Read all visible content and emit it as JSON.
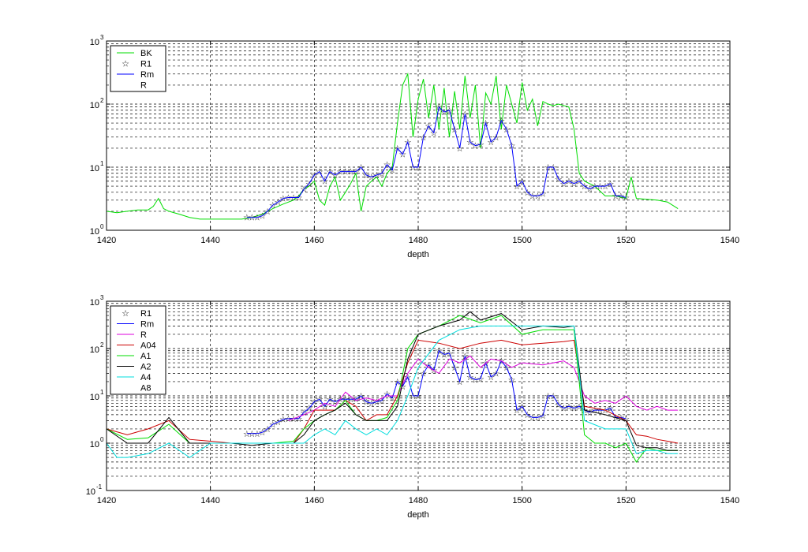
{
  "chart_data": [
    {
      "type": "line",
      "xlabel": "depth",
      "xlim": [
        1420,
        1540
      ],
      "ylim": [
        1,
        1000
      ],
      "yscale": "log",
      "grid": true,
      "legend_position": "top-left",
      "xticks": [
        "1420",
        "1440",
        "1460",
        "1480",
        "1500",
        "1520",
        "1540"
      ],
      "yticks": [
        {
          "base": "10",
          "exp": "0"
        },
        {
          "base": "10",
          "exp": "1"
        },
        {
          "base": "10",
          "exp": "2"
        },
        {
          "base": "10",
          "exp": "3"
        }
      ],
      "series": [
        {
          "name": "BK",
          "color": "#00dd00",
          "marker": "none",
          "x": [
            1420,
            1422,
            1424,
            1426,
            1428,
            1429,
            1430,
            1431,
            1432,
            1434,
            1436,
            1438,
            1440,
            1442,
            1444,
            1446,
            1448,
            1450,
            1452,
            1454,
            1456,
            1457,
            1458,
            1459,
            1460,
            1461,
            1462,
            1463,
            1464,
            1465,
            1466,
            1467,
            1468,
            1469,
            1470,
            1471,
            1472,
            1473,
            1474,
            1475,
            1476,
            1477,
            1478,
            1479,
            1480,
            1481,
            1482,
            1483,
            1484,
            1485,
            1486,
            1487,
            1488,
            1489,
            1490,
            1491,
            1492,
            1493,
            1494,
            1495,
            1496,
            1497,
            1498,
            1499,
            1500,
            1501,
            1502,
            1503,
            1504,
            1505,
            1506,
            1507,
            1508,
            1509,
            1510,
            1511,
            1512,
            1514,
            1516,
            1518,
            1520,
            1521,
            1522,
            1524,
            1526,
            1528,
            1530
          ],
          "y": [
            2.0,
            1.9,
            2.0,
            2.1,
            2.1,
            2.4,
            3.2,
            2.2,
            2.0,
            1.8,
            1.6,
            1.5,
            1.5,
            1.5,
            1.5,
            1.5,
            1.6,
            1.8,
            2.2,
            2.6,
            3.0,
            3.5,
            4.5,
            5.0,
            6.0,
            3.0,
            2.5,
            5.0,
            7.0,
            3.0,
            4.0,
            5.5,
            8.0,
            2.0,
            5.0,
            6.0,
            7.0,
            5.0,
            8.0,
            10.0,
            50.0,
            200.0,
            300.0,
            30.0,
            120.0,
            250.0,
            60.0,
            200.0,
            40.0,
            180.0,
            30.0,
            160.0,
            40.0,
            280.0,
            60.0,
            200.0,
            20.0,
            150.0,
            100.0,
            280.0,
            40.0,
            200.0,
            100.0,
            50.0,
            220.0,
            80.0,
            120.0,
            45.0,
            110.0,
            100.0,
            95.0,
            100.0,
            95.0,
            90.0,
            40.0,
            8.0,
            6.0,
            5.0,
            3.5,
            3.5,
            3.2,
            7.0,
            3.2,
            3.1,
            3.0,
            2.8,
            2.2
          ]
        },
        {
          "name": "R1",
          "color": "#0000ff",
          "marker": "star",
          "x": [
            1447,
            1448,
            1449,
            1450,
            1451,
            1452,
            1453,
            1454,
            1455,
            1456,
            1457,
            1458,
            1459,
            1460,
            1461,
            1462,
            1463,
            1464,
            1465,
            1466,
            1467,
            1468,
            1469,
            1470,
            1471,
            1472,
            1473,
            1474,
            1475,
            1476,
            1477,
            1478,
            1479,
            1480,
            1481,
            1482,
            1483,
            1484,
            1485,
            1486,
            1487,
            1488,
            1489,
            1490,
            1491,
            1492,
            1493,
            1494,
            1495,
            1496,
            1497,
            1498,
            1499,
            1500,
            1501,
            1502,
            1503,
            1504,
            1505,
            1506,
            1507,
            1508,
            1509,
            1510,
            1511,
            1512,
            1513,
            1514,
            1515,
            1516,
            1517,
            1518,
            1519,
            1520
          ],
          "y": [
            1.6,
            1.6,
            1.6,
            1.7,
            2.0,
            2.5,
            2.8,
            3.2,
            3.3,
            3.3,
            3.3,
            4.5,
            5.5,
            7.5,
            8.5,
            6.0,
            8.5,
            7.5,
            8.5,
            8.5,
            8.5,
            8.5,
            10.0,
            7.5,
            7.0,
            7.5,
            8.0,
            11.0,
            9.0,
            20.0,
            16.0,
            25.0,
            10.0,
            10.0,
            30.0,
            45.0,
            35.0,
            90.0,
            75.0,
            80.0,
            40.0,
            20.0,
            70.0,
            25.0,
            22.0,
            23.0,
            50.0,
            25.0,
            30.0,
            55.0,
            40.0,
            22.0,
            5.0,
            6.0,
            4.0,
            3.5,
            3.5,
            3.8,
            10.0,
            10.0,
            6.5,
            5.5,
            6.0,
            5.5,
            6.0,
            5.0,
            4.5,
            5.0,
            5.0,
            5.0,
            5.5,
            3.5,
            3.5,
            3.3
          ]
        },
        {
          "name": "Rm",
          "color": "#0000ff",
          "marker": "none",
          "same_as": "R1"
        },
        {
          "name": "R",
          "color": "#ffffff",
          "marker": "none",
          "hidden": true
        }
      ]
    },
    {
      "type": "line",
      "xlabel": "depth",
      "xlim": [
        1420,
        1540
      ],
      "ylim": [
        0.1,
        1000
      ],
      "yscale": "log",
      "grid": true,
      "legend_position": "top-left",
      "xticks": [
        "1420",
        "1440",
        "1460",
        "1480",
        "1500",
        "1520",
        "1540"
      ],
      "yticks": [
        {
          "base": "10",
          "exp": "-1"
        },
        {
          "base": "10",
          "exp": "0"
        },
        {
          "base": "10",
          "exp": "1"
        },
        {
          "base": "10",
          "exp": "2"
        },
        {
          "base": "10",
          "exp": "3"
        }
      ],
      "series": [
        {
          "name": "R1",
          "color": "#0000ff",
          "marker": "star",
          "same_as": "top.R1"
        },
        {
          "name": "Rm",
          "color": "#0000ff",
          "marker": "none",
          "same_as": "top.R1"
        },
        {
          "name": "R",
          "color": "#dd00dd",
          "marker": "none",
          "x": [
            1455,
            1458,
            1460,
            1462,
            1464,
            1466,
            1468,
            1470,
            1472,
            1474,
            1476,
            1478,
            1480,
            1482,
            1484,
            1486,
            1488,
            1490,
            1492,
            1494,
            1496,
            1498,
            1500,
            1504,
            1508,
            1510,
            1512,
            1514,
            1516,
            1518,
            1520,
            1522,
            1524,
            1526,
            1528,
            1530
          ],
          "y": [
            3.0,
            4.0,
            5.0,
            7.0,
            6.0,
            12.0,
            8.0,
            9.0,
            8.0,
            10.0,
            10.0,
            30.0,
            60.0,
            40.0,
            30.0,
            60.0,
            50.0,
            70.0,
            40.0,
            60.0,
            55.0,
            40.0,
            50.0,
            45.0,
            55.0,
            40.0,
            10.0,
            7.0,
            8.0,
            7.0,
            10.0,
            6.0,
            5.0,
            6.0,
            5.0,
            5.0
          ]
        },
        {
          "name": "A04",
          "color": "#cc0000",
          "marker": "none",
          "x": [
            1420,
            1424,
            1428,
            1432,
            1436,
            1440,
            1444,
            1448,
            1452,
            1456,
            1458,
            1460,
            1462,
            1464,
            1466,
            1468,
            1470,
            1472,
            1474,
            1476,
            1478,
            1480,
            1484,
            1488,
            1492,
            1496,
            1500,
            1504,
            1508,
            1510,
            1512,
            1516,
            1520,
            1522,
            1524,
            1526,
            1528,
            1530
          ],
          "y": [
            2.0,
            1.5,
            2.0,
            3.0,
            1.2,
            1.1,
            1.0,
            1.0,
            1.0,
            1.0,
            2.0,
            5.0,
            5.0,
            5.0,
            8.0,
            6.0,
            3.0,
            4.0,
            4.0,
            10.0,
            50.0,
            150.0,
            130.0,
            100.0,
            130.0,
            150.0,
            120.0,
            130.0,
            140.0,
            150.0,
            6.0,
            5.0,
            3.0,
            1.5,
            1.4,
            1.2,
            1.1,
            1.0
          ]
        },
        {
          "name": "A1",
          "color": "#00dd00",
          "marker": "none",
          "x": [
            1420,
            1424,
            1428,
            1432,
            1436,
            1440,
            1444,
            1448,
            1452,
            1456,
            1458,
            1460,
            1462,
            1464,
            1466,
            1468,
            1470,
            1472,
            1474,
            1476,
            1478,
            1480,
            1484,
            1488,
            1492,
            1496,
            1500,
            1504,
            1508,
            1510,
            1512,
            1514,
            1516,
            1518,
            1520,
            1522,
            1524,
            1526,
            1528,
            1530
          ],
          "y": [
            2.0,
            1.2,
            1.3,
            2.5,
            1.0,
            1.0,
            1.0,
            1.0,
            1.0,
            1.1,
            2.0,
            3.0,
            4.0,
            5.0,
            8.0,
            4.0,
            3.0,
            3.0,
            3.5,
            8.0,
            100.0,
            200.0,
            300.0,
            500.0,
            350.0,
            500.0,
            200.0,
            250.0,
            250.0,
            250.0,
            1.5,
            1.0,
            1.0,
            0.8,
            1.0,
            0.4,
            0.8,
            0.7,
            0.7,
            0.7
          ]
        },
        {
          "name": "A2",
          "color": "#000000",
          "marker": "none",
          "x": [
            1420,
            1424,
            1428,
            1432,
            1436,
            1440,
            1444,
            1448,
            1452,
            1456,
            1458,
            1460,
            1462,
            1464,
            1466,
            1468,
            1470,
            1472,
            1474,
            1476,
            1478,
            1480,
            1484,
            1488,
            1490,
            1492,
            1496,
            1500,
            1504,
            1508,
            1510,
            1512,
            1516,
            1520,
            1522,
            1524,
            1526,
            1528,
            1530
          ],
          "y": [
            2.0,
            1.0,
            1.0,
            3.5,
            1.0,
            1.0,
            1.0,
            0.9,
            1.0,
            1.0,
            1.5,
            3.0,
            4.0,
            5.0,
            7.0,
            4.0,
            3.0,
            3.0,
            3.0,
            6.0,
            60.0,
            200.0,
            300.0,
            400.0,
            600.0,
            400.0,
            550.0,
            250.0,
            300.0,
            280.0,
            300.0,
            5.0,
            4.0,
            3.0,
            0.9,
            0.8,
            0.8,
            0.7,
            0.7
          ]
        },
        {
          "name": "A4",
          "color": "#00dddd",
          "marker": "none",
          "x": [
            1420,
            1422,
            1424,
            1428,
            1432,
            1436,
            1440,
            1444,
            1448,
            1452,
            1456,
            1458,
            1460,
            1462,
            1464,
            1466,
            1468,
            1470,
            1472,
            1474,
            1476,
            1478,
            1480,
            1484,
            1488,
            1492,
            1496,
            1500,
            1504,
            1508,
            1510,
            1512,
            1516,
            1520,
            1522,
            1524,
            1526,
            1528,
            1530
          ],
          "y": [
            1.0,
            0.5,
            0.5,
            0.6,
            1.0,
            0.5,
            1.0,
            1.0,
            1.0,
            1.0,
            1.0,
            1.0,
            1.5,
            2.0,
            1.5,
            3.0,
            2.0,
            1.5,
            2.0,
            1.5,
            3.0,
            10.0,
            40.0,
            150.0,
            250.0,
            300.0,
            300.0,
            300.0,
            300.0,
            300.0,
            300.0,
            3.0,
            2.0,
            2.0,
            0.6,
            0.7,
            0.7,
            0.6,
            0.6
          ]
        },
        {
          "name": "A8",
          "color": "#ffffff",
          "marker": "none",
          "hidden": true
        }
      ]
    }
  ]
}
